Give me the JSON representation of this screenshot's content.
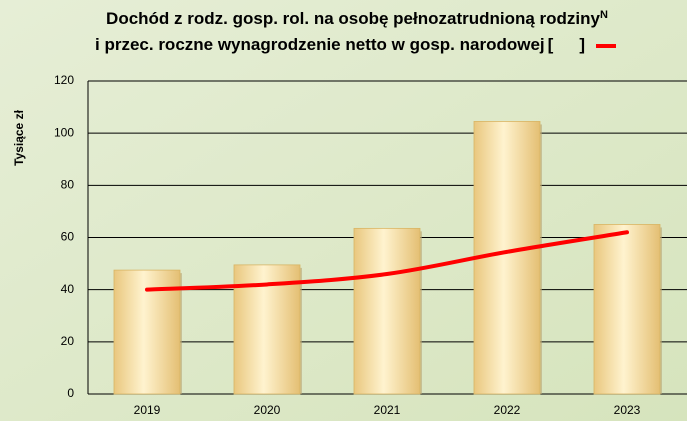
{
  "chart_data": {
    "type": "bar_line",
    "title": [
      "Dochód z rodz. gosp. rol. na osobę pełnozatrudnioną rodziny",
      "i przec. roczne wynagrodzenie netto w gosp. narodowej"
    ],
    "title_note": "N",
    "legend_open": "[",
    "legend_close": "]",
    "y_label": "Tysiące zł",
    "categories": [
      "2019",
      "2020",
      "2021",
      "2022",
      "2023"
    ],
    "series": [
      {
        "type": "bar",
        "color": "#f7dfa0",
        "values": [
          47.5,
          49.5,
          63.5,
          104.5,
          65
        ]
      },
      {
        "type": "line",
        "color": "#ff0000",
        "values": [
          40,
          42,
          46,
          54.5,
          62
        ]
      }
    ],
    "ylim": [
      0,
      120
    ],
    "yticks": [
      0,
      20,
      40,
      60,
      80,
      100,
      120
    ],
    "grid": true
  }
}
